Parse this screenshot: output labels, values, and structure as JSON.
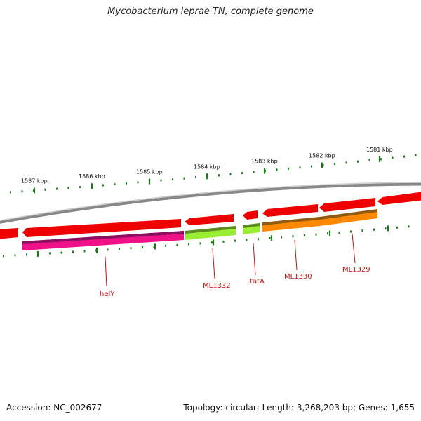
{
  "title": "Mycobacterium leprae TN, complete genome",
  "footer": {
    "accession": "Accession: NC_002677",
    "stats": "Topology: circular; Length: 3,268,203 bp; Genes: 1,655"
  },
  "scale": {
    "unit": "kbp",
    "tick_labels": [
      "1587 kbp",
      "1586 kbp",
      "1585 kbp",
      "1584 kbp",
      "1583 kbp",
      "1582 kbp",
      "1581 kbp"
    ]
  },
  "colors": {
    "backbone": "#888888",
    "cds": "#ee0000",
    "ticks": "#1a7a1a",
    "label": "#cc1111"
  },
  "gene_labels": [
    "helY",
    "ML1332",
    "tatA",
    "ML1330",
    "ML1329"
  ],
  "genes": [
    {
      "name": "helY",
      "color": "#ee1188"
    },
    {
      "name": "ML1332",
      "color": "#99ee33"
    },
    {
      "name": "tatA",
      "color": "#99ee33"
    },
    {
      "name": "ML1330",
      "color": "#ff8800"
    },
    {
      "name": "ML1329",
      "color": "#ff8800"
    }
  ]
}
